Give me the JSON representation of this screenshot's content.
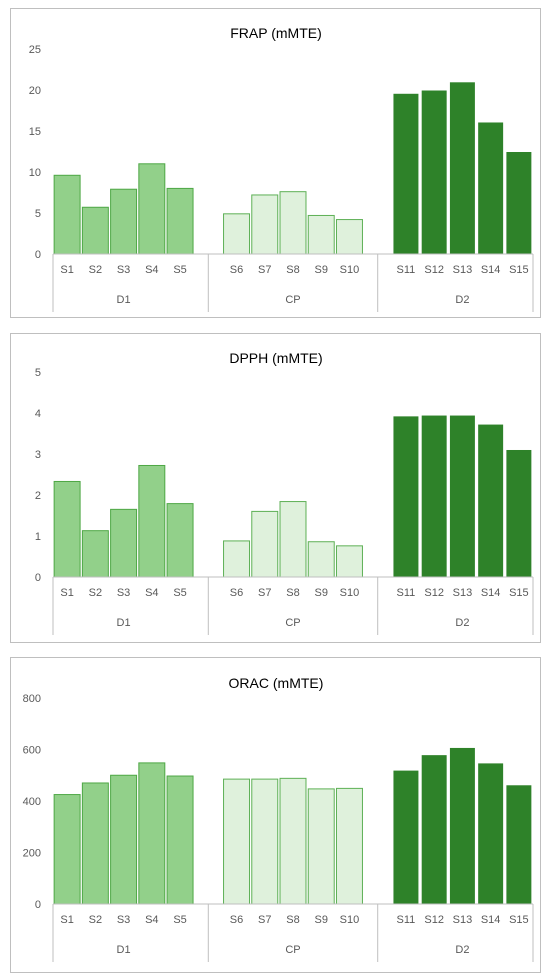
{
  "colors": {
    "D1": "#92d08a",
    "CP": "#dff1dc",
    "D2": "#2e8229",
    "bar_stroke_D1": "#4ea745",
    "bar_stroke_CP": "#5db055",
    "bar_stroke_D2": "#ffffff",
    "axis": "#bfbfbf",
    "text": "#595959"
  },
  "chart_data": [
    {
      "type": "bar",
      "title": "FRAP (mMTE)",
      "groups": [
        {
          "name": "D1",
          "categories": [
            "S1",
            "S2",
            "S3",
            "S4",
            "S5"
          ],
          "values": [
            9.6,
            5.7,
            7.9,
            11.0,
            8.0
          ]
        },
        {
          "name": "CP",
          "categories": [
            "S6",
            "S7",
            "S8",
            "S9",
            "S10"
          ],
          "values": [
            4.9,
            7.2,
            7.6,
            4.7,
            4.2
          ]
        },
        {
          "name": "D2",
          "categories": [
            "S11",
            "S12",
            "S13",
            "S14",
            "S15"
          ],
          "values": [
            19.6,
            20.0,
            21.0,
            16.1,
            12.5
          ]
        }
      ],
      "ylim": [
        0,
        25
      ],
      "yticks": [
        0,
        5,
        10,
        15,
        20,
        25
      ],
      "grid": false
    },
    {
      "type": "bar",
      "title": "DPPH (mMTE)",
      "groups": [
        {
          "name": "D1",
          "categories": [
            "S1",
            "S2",
            "S3",
            "S4",
            "S5"
          ],
          "values": [
            2.33,
            1.13,
            1.65,
            2.72,
            1.79
          ]
        },
        {
          "name": "CP",
          "categories": [
            "S6",
            "S7",
            "S8",
            "S9",
            "S10"
          ],
          "values": [
            0.88,
            1.6,
            1.84,
            0.86,
            0.76
          ]
        },
        {
          "name": "D2",
          "categories": [
            "S11",
            "S12",
            "S13",
            "S14",
            "S15"
          ],
          "values": [
            3.93,
            3.95,
            3.95,
            3.73,
            3.11
          ]
        }
      ],
      "ylim": [
        0,
        5
      ],
      "yticks": [
        0,
        1,
        2,
        3,
        4,
        5
      ],
      "grid": false
    },
    {
      "type": "bar",
      "title": "ORAC (mMTE)",
      "groups": [
        {
          "name": "D1",
          "categories": [
            "S1",
            "S2",
            "S3",
            "S4",
            "S5"
          ],
          "values": [
            425,
            470,
            500,
            548,
            497
          ]
        },
        {
          "name": "CP",
          "categories": [
            "S6",
            "S7",
            "S8",
            "S9",
            "S10"
          ],
          "values": [
            485,
            485,
            488,
            447,
            449
          ]
        },
        {
          "name": "D2",
          "categories": [
            "S11",
            "S12",
            "S13",
            "S14",
            "S15"
          ],
          "values": [
            520,
            580,
            608,
            548,
            463
          ]
        }
      ],
      "ylim": [
        0,
        800
      ],
      "yticks": [
        0,
        200,
        400,
        600,
        800
      ],
      "grid": false
    }
  ]
}
